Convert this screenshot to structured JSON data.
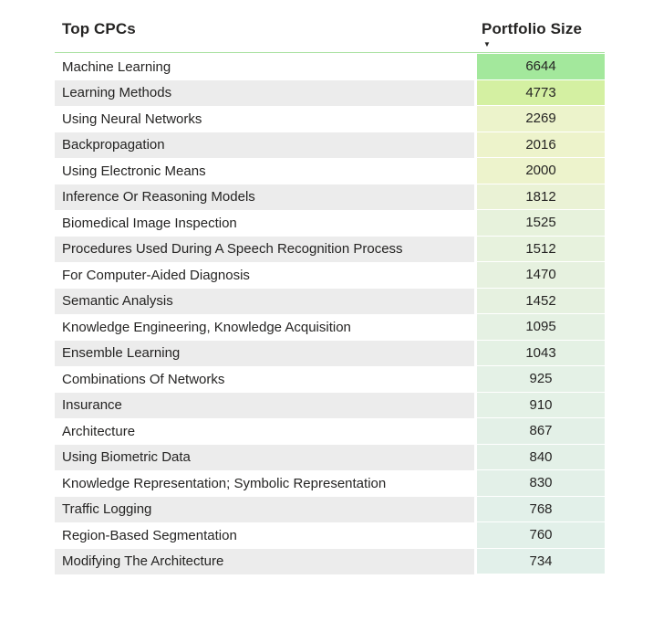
{
  "header": {
    "cpc_column_label": "Top CPCs",
    "value_column_label": "Portfolio Size",
    "sort_descending_icon": "▼"
  },
  "chart_data": {
    "type": "table",
    "title": "Top CPCs",
    "columns": [
      "Top CPCs",
      "Portfolio Size"
    ],
    "sort": "Portfolio Size descending",
    "legend": "none",
    "rows": [
      {
        "cpc": "Machine Learning",
        "portfolio_size": 6644,
        "cell_color": "#a3e89c"
      },
      {
        "cpc": "Learning Methods",
        "portfolio_size": 4773,
        "cell_color": "#d4f0a2"
      },
      {
        "cpc": "Using Neural Networks",
        "portfolio_size": 2269,
        "cell_color": "#ecf3cb"
      },
      {
        "cpc": "Backpropagation",
        "portfolio_size": 2016,
        "cell_color": "#edf3cb"
      },
      {
        "cpc": "Using Electronic Means",
        "portfolio_size": 2000,
        "cell_color": "#edf3cc"
      },
      {
        "cpc": "Inference Or Reasoning Models",
        "portfolio_size": 1812,
        "cell_color": "#eaf2d5"
      },
      {
        "cpc": "Biomedical Image Inspection",
        "portfolio_size": 1525,
        "cell_color": "#e7f2dc"
      },
      {
        "cpc": "Procedures Used During A Speech Recognition Process",
        "portfolio_size": 1512,
        "cell_color": "#e7f2dd"
      },
      {
        "cpc": "For Computer-Aided Diagnosis",
        "portfolio_size": 1470,
        "cell_color": "#e6f1df"
      },
      {
        "cpc": "Semantic Analysis",
        "portfolio_size": 1452,
        "cell_color": "#e6f1e0"
      },
      {
        "cpc": "Knowledge Engineering, Knowledge Acquisition",
        "portfolio_size": 1095,
        "cell_color": "#e5f1e3"
      },
      {
        "cpc": "Ensemble Learning",
        "portfolio_size": 1043,
        "cell_color": "#e4f1e4"
      },
      {
        "cpc": "Combinations Of Networks",
        "portfolio_size": 925,
        "cell_color": "#e4f1e6"
      },
      {
        "cpc": "Insurance",
        "portfolio_size": 910,
        "cell_color": "#e4f1e6"
      },
      {
        "cpc": "Architecture",
        "portfolio_size": 867,
        "cell_color": "#e3f0e7"
      },
      {
        "cpc": "Using Biometric Data",
        "portfolio_size": 840,
        "cell_color": "#e3f0e7"
      },
      {
        "cpc": "Knowledge Representation; Symbolic Representation",
        "portfolio_size": 830,
        "cell_color": "#e3f0e8"
      },
      {
        "cpc": "Traffic Logging",
        "portfolio_size": 768,
        "cell_color": "#e2f0e9"
      },
      {
        "cpc": "Region-Based Segmentation",
        "portfolio_size": 760,
        "cell_color": "#e2f0e9"
      },
      {
        "cpc": "Modifying The Architecture",
        "portfolio_size": 734,
        "cell_color": "#e2f0ea"
      }
    ]
  },
  "colors": {
    "header_underline": "#aee3a6",
    "row_stripe": "#ececec",
    "row_white": "#ffffff",
    "text": "#252423",
    "background": "#ffffff"
  }
}
